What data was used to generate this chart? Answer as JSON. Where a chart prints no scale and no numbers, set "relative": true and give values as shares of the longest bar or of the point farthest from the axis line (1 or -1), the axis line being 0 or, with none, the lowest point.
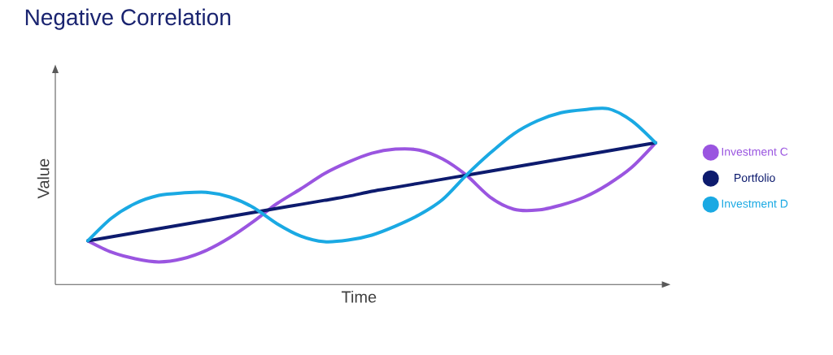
{
  "chart_data": {
    "type": "line",
    "title": "Negative Correlation",
    "xlabel": "Time",
    "ylabel": "Value",
    "relative": true,
    "legend": "right",
    "categories": [
      null,
      null,
      null,
      null,
      null,
      null,
      null,
      null,
      null,
      null,
      null,
      null,
      null,
      null,
      null,
      null,
      null,
      null,
      null,
      null,
      null,
      null,
      null,
      null,
      null
    ],
    "series": [
      {
        "name": "Investment C",
        "color": "#9a55e0",
        "values": [
          0.249,
          0.184,
          0.147,
          0.129,
          0.147,
          0.194,
          0.267,
          0.359,
          0.461,
          0.544,
          0.631,
          0.696,
          0.747,
          0.77,
          0.765,
          0.714,
          0.622,
          0.498,
          0.429,
          0.424,
          0.452,
          0.498,
          0.571,
          0.668,
          0.806
        ]
      },
      {
        "name": "Portfolio",
        "color": "#0d1b6e",
        "values": [
          0.249,
          0.272,
          0.295,
          0.318,
          0.341,
          0.364,
          0.387,
          0.41,
          0.433,
          0.456,
          0.479,
          0.502,
          0.53,
          0.553,
          0.576,
          0.599,
          0.622,
          0.645,
          0.668,
          0.691,
          0.714,
          0.737,
          0.76,
          0.783,
          0.806
        ]
      },
      {
        "name": "Investment D",
        "color": "#1aa9e3",
        "values": [
          0.249,
          0.378,
          0.461,
          0.507,
          0.521,
          0.525,
          0.498,
          0.438,
          0.346,
          0.276,
          0.244,
          0.253,
          0.281,
          0.332,
          0.396,
          0.484,
          0.622,
          0.747,
          0.857,
          0.931,
          0.977,
          0.995,
          1.0,
          0.931,
          0.806
        ]
      }
    ]
  }
}
